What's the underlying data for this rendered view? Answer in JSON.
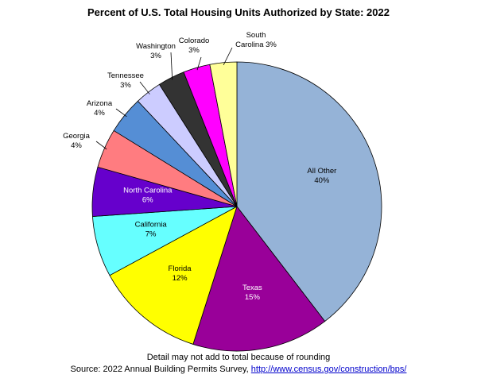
{
  "chart_data": {
    "type": "pie",
    "title": "Percent of U.S. Total Housing Units Authorized by State:  2022",
    "start": "12 o'clock",
    "direction": "clockwise",
    "slices": [
      {
        "name": "All Other",
        "label_lines": [
          "All Other"
        ],
        "pct_label": "40%",
        "value": 39.6,
        "color": "#95b3d7",
        "label_pos": "inside"
      },
      {
        "name": "Texas",
        "label_lines": [
          "Texas"
        ],
        "pct_label": "15%",
        "value": 15.3,
        "color": "#990099",
        "label_pos": "inside",
        "label_color": "#ffffff"
      },
      {
        "name": "Florida",
        "label_lines": [
          "Florida"
        ],
        "pct_label": "12%",
        "value": 12.2,
        "color": "#ffff00",
        "label_pos": "inside"
      },
      {
        "name": "California",
        "label_lines": [
          "California"
        ],
        "pct_label": "7%",
        "value": 6.8,
        "color": "#66ffff",
        "label_pos": "inside"
      },
      {
        "name": "North Carolina",
        "label_lines": [
          "North Carolina"
        ],
        "pct_label": "6%",
        "value": 5.5,
        "color": "#6600cc",
        "label_pos": "inside",
        "label_color": "#ffffff"
      },
      {
        "name": "Georgia",
        "label_lines": [
          "Georgia"
        ],
        "pct_label": "4%",
        "value": 4.4,
        "color": "#ff7c80",
        "label_pos": "outside"
      },
      {
        "name": "Arizona",
        "label_lines": [
          "Arizona"
        ],
        "pct_label": "4%",
        "value": 4.2,
        "color": "#558ed5",
        "label_pos": "outside"
      },
      {
        "name": "Tennessee",
        "label_lines": [
          "Tennessee"
        ],
        "pct_label": "3%",
        "value": 3.0,
        "color": "#ccccff",
        "label_pos": "outside"
      },
      {
        "name": "Washington",
        "label_lines": [
          "Washington"
        ],
        "pct_label": "3%",
        "value": 3.0,
        "color": "#333333",
        "label_pos": "outside"
      },
      {
        "name": "Colorado",
        "label_lines": [
          "Colorado"
        ],
        "pct_label": "3%",
        "value": 3.0,
        "color": "#ff00ff",
        "label_pos": "outside"
      },
      {
        "name": "South Carolina",
        "label_lines": [
          "South",
          "Carolina 3%"
        ],
        "pct_label": "3%",
        "value": 3.0,
        "color": "#ffff99",
        "label_pos": "outside"
      }
    ]
  },
  "footer": {
    "note": "Detail may not add to total because of rounding",
    "source_prefix": "Source: 2022 Annual Building Permits Survey, ",
    "source_link": "http://www.census.gov/construction/bps/"
  }
}
